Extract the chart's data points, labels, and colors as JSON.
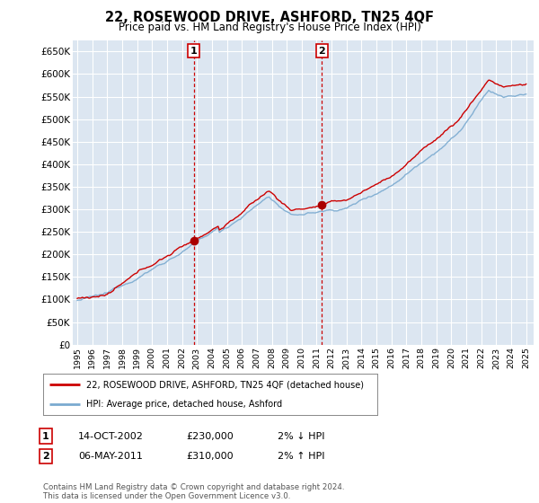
{
  "title": "22, ROSEWOOD DRIVE, ASHFORD, TN25 4QF",
  "subtitle": "Price paid vs. HM Land Registry's House Price Index (HPI)",
  "ylabel_ticks": [
    "£0",
    "£50K",
    "£100K",
    "£150K",
    "£200K",
    "£250K",
    "£300K",
    "£350K",
    "£400K",
    "£450K",
    "£500K",
    "£550K",
    "£600K",
    "£650K"
  ],
  "ytick_values": [
    0,
    50000,
    100000,
    150000,
    200000,
    250000,
    300000,
    350000,
    400000,
    450000,
    500000,
    550000,
    600000,
    650000
  ],
  "ylim": [
    0,
    675000
  ],
  "xlim_start": 1994.7,
  "xlim_end": 2025.5,
  "bg_color": "#dce6f1",
  "grid_color": "#ffffff",
  "sale1_x": 2002.79,
  "sale1_y": 230000,
  "sale2_x": 2011.35,
  "sale2_y": 310000,
  "vline_color": "#cc0000",
  "legend_house_label": "22, ROSEWOOD DRIVE, ASHFORD, TN25 4QF (detached house)",
  "legend_hpi_label": "HPI: Average price, detached house, Ashford",
  "table_row1": [
    "1",
    "14-OCT-2002",
    "£230,000",
    "2% ↓ HPI"
  ],
  "table_row2": [
    "2",
    "06-MAY-2011",
    "£310,000",
    "2% ↑ HPI"
  ],
  "footer": "Contains HM Land Registry data © Crown copyright and database right 2024.\nThis data is licensed under the Open Government Licence v3.0.",
  "house_line_color": "#cc0000",
  "hpi_line_color": "#7aaad0",
  "sale_dot_color": "#aa0000"
}
